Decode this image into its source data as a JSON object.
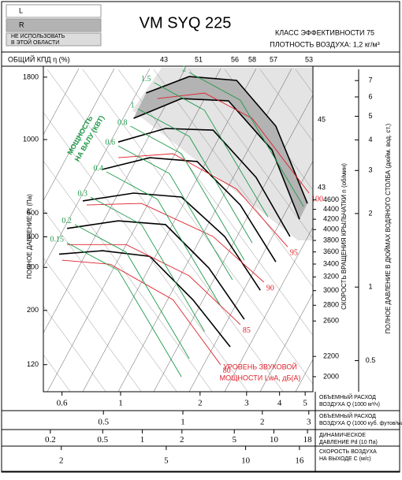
{
  "chart_data": {
    "type": "line",
    "title": "VM SYQ 225",
    "subtitle": [
      "КЛАСС ЭФФЕКТИВНОСТИ 75",
      "ПЛОТНОСТЬ ВОЗДУХА: 1,2 кг/м³"
    ],
    "regions": [
      {
        "label": [
          "L"
        ],
        "color": "#ffffff"
      },
      {
        "label": [
          "R"
        ],
        "color": "#b3b3b3"
      },
      {
        "label": [
          "НЕ ИСПОЛЬЗОВАТЬ",
          "В ЭТОЙ ОБЛАСТИ"
        ],
        "color": "#dcdcdc"
      }
    ],
    "efficiency_label": "ОБЩИЙ КПД η (%)",
    "efficiency_top": [
      43,
      51,
      56,
      58,
      57,
      53
    ],
    "efficiency_right": [
      45,
      43
    ],
    "ylabel": "ПОЛНОЕ ДАВЛЕНИЕ Pt (Па)",
    "ylog": true,
    "ylim": [
      93,
      1937
    ],
    "yticks": [
      120,
      200,
      300,
      400,
      500,
      1000,
      1800
    ],
    "y2label": "СКОРОСТЬ ВРАЩЕНИЯ КРЫЛЬЧАТКИ n (об/мин)",
    "y2lim": [
      1863,
      8510
    ],
    "y2ticks": [
      2000,
      2200,
      2600,
      2800,
      3000,
      3200,
      3400,
      3600,
      3800,
      4000,
      4200,
      4400,
      4600
    ],
    "y3label": "ПОЛНОЕ ДАВЛЕНИЕ В ДЮЙМАХ ВОДЯНОГО СТОЛБА (дюйм. вод. ст.)",
    "y3lim": [
      0.373,
      7.78
    ],
    "y3ticks": [
      0.5,
      1,
      2,
      3,
      4,
      5,
      6,
      7
    ],
    "xlabel": [
      "ОБЪЕМНЫЙ РАСХОД",
      "ВОЗДУХА Q (1000 м³/ч)"
    ],
    "xlog": true,
    "xlim": [
      0.51,
      5.35
    ],
    "xticks": [
      0.6,
      1,
      2,
      3,
      4,
      5
    ],
    "extra_x_axes": [
      {
        "label": [
          "ОБЪЕМНЫЙ РАСХОД",
          "ВОЗДУХА Q (1000 куб. футов/мин)"
        ],
        "lim": [
          0.296,
          3.11
        ],
        "ticks": [
          0.5,
          1,
          2,
          3
        ]
      },
      {
        "label": [
          "ДИНАМИЧЕСКОЕ",
          "ДАВЛЕНИЕ Pd (10 Па)"
        ],
        "lim": [
          0.177,
          19.8
        ],
        "ticks": [
          0.2,
          0.5,
          1,
          2,
          5,
          10,
          18
        ]
      },
      {
        "label": [
          "СКОРОСТЬ ВОЗДУХА",
          "НА ВЫХОДЕ C (м/с)"
        ],
        "lim": [
          1.71,
          18
        ],
        "ticks": [
          2,
          5,
          10,
          16
        ]
      }
    ],
    "power_title": [
      "МОЩНОСТЬ",
      "НА ВАЛУ (КВТ)"
    ],
    "sound_title": [
      "УРОВЕНЬ ЗВУКОВОЙ",
      "МОЩНОСТИ LwA, дБ(A)"
    ],
    "series": [
      {
        "color": "#000000",
        "x": [
          1.25,
          1.82,
          2.75,
          3.87,
          5.1
        ],
        "values": [
          1550,
          1811,
          1746,
          1135,
          548
        ]
      },
      {
        "color": "#000000",
        "x": [
          1.12,
          1.7,
          2.56,
          3.74,
          4.76
        ],
        "values": [
          1222,
          1471,
          1440,
          908,
          472
        ]
      },
      {
        "color": "#000000",
        "x": [
          0.98,
          1.48,
          2.24,
          3.26,
          4.38
        ],
        "values": [
          977,
          1110,
          1093,
          700,
          401
        ]
      },
      {
        "color": "#000000",
        "x": [
          0.854,
          1.29,
          1.95,
          2.84,
          3.87
        ],
        "values": [
          755,
          843,
          813,
          540,
          316
        ]
      },
      {
        "color": "#000000",
        "x": [
          0.719,
          1.12,
          1.7,
          2.48,
          3.38
        ],
        "values": [
          561,
          604,
          582,
          401,
          242
        ]
      },
      {
        "color": "#000000",
        "x": [
          0.627,
          0.98,
          1.48,
          2.16,
          2.94
        ],
        "values": [
          433,
          465,
          449,
          298,
          184
        ]
      },
      {
        "color": "#000000",
        "x": [
          0.585,
          0.854,
          1.29,
          1.88,
          2.6
        ],
        "values": [
          340,
          351,
          333,
          221,
          142
        ]
      },
      {
        "color": "#e0202a",
        "sound_level": 100,
        "x": [
          1.38,
          2.08,
          3.15,
          5.17
        ],
        "values": [
          1471,
          1550,
          1222,
          604
        ]
      },
      {
        "color": "#e0202a",
        "sound_level": 95,
        "x": [
          0.98,
          1.58,
          2.75,
          4.29
        ],
        "values": [
          843,
          875,
          627,
          364
        ]
      },
      {
        "color": "#e0202a",
        "sound_level": 90,
        "x": [
          0.744,
          1.2,
          2.24,
          3.49
        ],
        "values": [
          540,
          548,
          401,
          261
        ]
      },
      {
        "color": "#e0202a",
        "sound_level": 85,
        "x": [
          0.627,
          1.05,
          1.82,
          2.84
        ],
        "values": [
          372,
          372,
          277,
          175
        ]
      },
      {
        "color": "#e0202a",
        "sound_level": 80,
        "x": [
          0.6,
          0.915,
          1.58,
          2.39
        ],
        "values": [
          321,
          309,
          221,
          120
        ]
      },
      {
        "color": "#1f9a4a",
        "power": 0.15,
        "x": [
          0.627,
          0.98,
          1.7
        ],
        "values": [
          378,
          292,
          107
        ]
      },
      {
        "color": "#1f9a4a",
        "power": 0.2,
        "x": [
          0.671,
          1.05,
          1.82
        ],
        "values": [
          449,
          346,
          127
        ]
      },
      {
        "color": "#1f9a4a",
        "power": 0.3,
        "x": [
          0.77,
          1.2,
          2.08
        ],
        "values": [
          582,
          449,
          164
        ]
      },
      {
        "color": "#1f9a4a",
        "power": 0.4,
        "x": [
          0.884,
          1.38,
          2.39
        ],
        "values": [
          738,
          569,
          209
        ]
      },
      {
        "color": "#1f9a4a",
        "power": 0.6,
        "x": [
          0.98,
          1.53,
          2.65
        ],
        "values": [
          942,
          726,
          267
        ]
      },
      {
        "color": "#1f9a4a",
        "power": 0.8,
        "x": [
          1.09,
          1.7,
          2.94
        ],
        "values": [
          1135,
          875,
          321
        ]
      },
      {
        "color": "#1f9a4a",
        "power": 1,
        "x": [
          1.16,
          1.82,
          3.15
        ],
        "values": [
          1336,
          1030,
          378
        ]
      },
      {
        "color": "#1f9a4a",
        "power": 1.5,
        "x": [
          1.34,
          2.08,
          3.61
        ],
        "values": [
          1709,
          1318,
          483
        ]
      },
      {
        "color": "#1f9a4a",
        "power": 2,
        "x": [
          1.82,
          2.84,
          4.93
        ],
        "values": [
          1880,
          1449,
          532
        ]
      }
    ]
  }
}
